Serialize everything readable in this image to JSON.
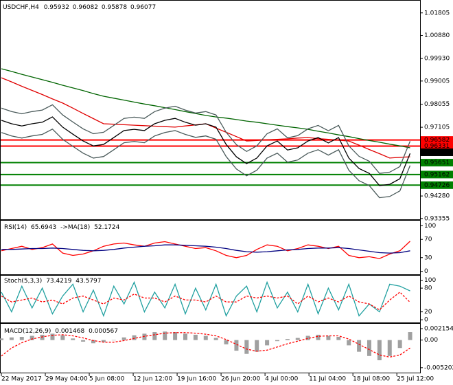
{
  "chart_data": [
    {
      "type": "line",
      "title": "USDCHF,H4",
      "ohlc": [
        0.95932,
        0.96082,
        0.95878,
        0.96077
      ],
      "x": [
        0,
        1,
        2,
        3,
        4,
        5,
        6,
        7,
        8,
        9,
        10,
        11,
        12,
        13,
        14,
        15,
        16,
        17,
        18,
        19,
        20,
        21,
        22,
        23,
        24,
        25,
        26,
        27,
        28,
        29,
        30,
        31,
        32,
        33,
        34,
        35,
        36,
        37,
        38,
        39,
        40
      ],
      "xlim": [
        0,
        40.3
      ],
      "xticks": [
        {
          "value": 0,
          "label": "22 May 2017"
        },
        {
          "value": 4.3,
          "label": "29 May 04:00"
        },
        {
          "value": 8.6,
          "label": "5 Jun 08:00"
        },
        {
          "value": 12.9,
          "label": "12 Jun 12:00"
        },
        {
          "value": 17.2,
          "label": "19 Jun 16:00"
        },
        {
          "value": 21.5,
          "label": "26 Jun 20:00"
        },
        {
          "value": 25.8,
          "label": "4 Jul 00:00"
        },
        {
          "value": 30.1,
          "label": "11 Jul 04:00"
        },
        {
          "value": 34.4,
          "label": "18 Jul 08:00"
        },
        {
          "value": 38.7,
          "label": "25 Jul 12:00"
        }
      ],
      "ylim": [
        0.9335,
        1.0225
      ],
      "yticks": [
        1.01805,
        {
          "value": 1.0088,
          "label": "1.00880"
        },
        {
          "value": 0.9993,
          "label": "0.99930"
        },
        0.99005,
        0.98055,
        0.97105,
        {
          "value": 0.9428,
          "label": "0.94280"
        },
        0.93355
      ],
      "levels": [
        {
          "value": 0.96582,
          "color": "#ff0000"
        },
        {
          "value": 0.96331,
          "color": "#ff0000"
        },
        {
          "value": 0.96077,
          "color": "#000000"
        },
        {
          "value": 0.95651,
          "color": "#008000"
        },
        {
          "value": 0.95162,
          "color": "#008000"
        },
        {
          "value": 0.94726,
          "color": "#008000"
        }
      ],
      "series": [
        {
          "color": "#006400",
          "values": [
            0.9951,
            0.994,
            0.9928,
            0.9917,
            0.9906,
            0.9895,
            0.9883,
            0.9872,
            0.9861,
            0.9849,
            0.9838,
            0.983,
            0.9822,
            0.9814,
            0.9806,
            0.9799,
            0.9791,
            0.9783,
            0.9775,
            0.9767,
            0.9759,
            0.9753,
            0.9748,
            0.9742,
            0.9736,
            0.9731,
            0.9725,
            0.9719,
            0.9713,
            0.9708,
            0.9702,
            0.9694,
            0.9687,
            0.9679,
            0.9672,
            0.9664,
            0.9656,
            0.9649,
            0.9641,
            0.9634,
            0.9626
          ]
        },
        {
          "color": "#e00000",
          "values": [
            0.9914,
            0.9897,
            0.9879,
            0.9862,
            0.9845,
            0.9827,
            0.981,
            0.9789,
            0.9767,
            0.9746,
            0.9725,
            0.9723,
            0.9721,
            0.9719,
            0.9717,
            0.9715,
            0.9713,
            0.9711,
            0.9716,
            0.972,
            0.9725,
            0.9707,
            0.969,
            0.9672,
            0.9654,
            0.9656,
            0.9659,
            0.9661,
            0.9663,
            0.9666,
            0.9668,
            0.9664,
            0.9661,
            0.9657,
            0.9654,
            0.9637,
            0.9619,
            0.9602,
            0.9584,
            0.9587,
            0.9589
          ]
        },
        {
          "color": "#4a5a5a",
          "values": [
            0.9789,
            0.9775,
            0.9766,
            0.9775,
            0.9781,
            0.9803,
            0.9761,
            0.9732,
            0.9704,
            0.9684,
            0.969,
            0.9718,
            0.9747,
            0.9752,
            0.9747,
            0.9775,
            0.9789,
            0.9797,
            0.9781,
            0.9769,
            0.9775,
            0.9761,
            0.969,
            0.9639,
            0.9611,
            0.9634,
            0.9684,
            0.9704,
            0.9667,
            0.9676,
            0.9704,
            0.9718,
            0.9696,
            0.9718,
            0.9634,
            0.9591,
            0.9571,
            0.9521,
            0.9526,
            0.9549,
            0.9653
          ]
        },
        {
          "color": "#4a5a5a",
          "values": [
            0.9689,
            0.9675,
            0.9666,
            0.9675,
            0.9681,
            0.9703,
            0.9661,
            0.9632,
            0.9604,
            0.9584,
            0.959,
            0.9618,
            0.9647,
            0.9652,
            0.9647,
            0.9675,
            0.9689,
            0.9697,
            0.9681,
            0.9669,
            0.9675,
            0.9661,
            0.959,
            0.9539,
            0.9511,
            0.9534,
            0.9584,
            0.9604,
            0.9567,
            0.9576,
            0.9604,
            0.9618,
            0.9596,
            0.9618,
            0.9534,
            0.9491,
            0.9471,
            0.9421,
            0.9426,
            0.9449,
            0.9553
          ]
        },
        {
          "color": "#000000",
          "values": [
            0.9739,
            0.9725,
            0.9716,
            0.9725,
            0.9731,
            0.9753,
            0.9711,
            0.9682,
            0.9654,
            0.9634,
            0.964,
            0.9668,
            0.9697,
            0.9702,
            0.9697,
            0.9725,
            0.9739,
            0.9747,
            0.9731,
            0.9719,
            0.9725,
            0.9711,
            0.964,
            0.9589,
            0.9561,
            0.9584,
            0.9634,
            0.9654,
            0.9617,
            0.9626,
            0.9654,
            0.9668,
            0.9646,
            0.9668,
            0.9584,
            0.9541,
            0.9521,
            0.9471,
            0.9476,
            0.9499,
            0.9603
          ]
        }
      ]
    },
    {
      "type": "line",
      "title": "RSI(14)",
      "value": 65.6943,
      "subtitle": "->MA(18)",
      "value2": 52.1724,
      "ylim": [
        -5,
        108
      ],
      "yticks": [
        100,
        70,
        30,
        0
      ],
      "series": [
        {
          "color": "#ff0000",
          "values": [
            45,
            50,
            55,
            48,
            52,
            60,
            40,
            35,
            38,
            45,
            55,
            60,
            62,
            58,
            55,
            62,
            65,
            60,
            55,
            50,
            52,
            45,
            35,
            30,
            35,
            48,
            58,
            55,
            45,
            50,
            58,
            55,
            50,
            55,
            35,
            30,
            32,
            28,
            38,
            45,
            66
          ]
        },
        {
          "color": "#000080",
          "values": [
            48,
            48,
            49,
            50,
            50,
            51,
            50,
            48,
            46,
            45,
            46,
            48,
            51,
            53,
            55,
            56,
            58,
            58,
            57,
            56,
            55,
            53,
            50,
            46,
            43,
            42,
            43,
            45,
            47,
            48,
            50,
            51,
            51,
            52,
            50,
            47,
            44,
            41,
            40,
            41,
            45
          ]
        }
      ]
    },
    {
      "type": "line",
      "title": "Stoch(5,3,3)",
      "value": 73.4219,
      "value2": 43.5797,
      "ylim": [
        -5,
        108
      ],
      "yticks": [
        100,
        80,
        20,
        0
      ],
      "series": [
        {
          "color": "#20a0a0",
          "values": [
            70,
            20,
            85,
            30,
            80,
            15,
            60,
            90,
            20,
            75,
            10,
            85,
            40,
            95,
            20,
            70,
            30,
            90,
            15,
            80,
            25,
            90,
            10,
            60,
            85,
            20,
            95,
            30,
            70,
            20,
            90,
            15,
            80,
            25,
            90,
            10,
            40,
            20,
            90,
            85,
            73
          ]
        },
        {
          "color": "#ff0000",
          "dash": true,
          "values": [
            60,
            45,
            50,
            55,
            45,
            50,
            40,
            55,
            60,
            50,
            40,
            55,
            50,
            65,
            55,
            55,
            45,
            60,
            50,
            50,
            45,
            60,
            45,
            45,
            60,
            55,
            60,
            55,
            60,
            40,
            60,
            45,
            55,
            45,
            60,
            45,
            40,
            25,
            50,
            70,
            44
          ]
        }
      ]
    },
    {
      "type": "line",
      "title": "MACD(12,26,9)",
      "value": 0.001468,
      "value2": 0.000567,
      "ylim": [
        -0.006,
        0.0028
      ],
      "yticks": [
        0.002154,
        {
          "value": 0,
          "label": "0.00"
        },
        -0.005202
      ],
      "series": [
        {
          "color": "#a0a0a0",
          "style": "bar",
          "values": [
            0.0003,
            0.0005,
            0.0006,
            0.0008,
            0.001,
            0.0012,
            0.0009,
            0.0003,
            -0.0003,
            -0.0006,
            -0.0004,
            0.0,
            0.0005,
            0.0009,
            0.0012,
            0.0015,
            0.0016,
            0.0015,
            0.0012,
            0.001,
            0.0008,
            0.0004,
            -0.0008,
            -0.002,
            -0.0026,
            -0.0022,
            -0.001,
            -0.0002,
            0.0002,
            0.0004,
            0.0008,
            0.001,
            0.0008,
            0.0006,
            -0.001,
            -0.0022,
            -0.003,
            -0.0038,
            -0.003,
            -0.0015,
            0.0015
          ]
        },
        {
          "color": "#ff0000",
          "dash": true,
          "values": [
            -0.003,
            -0.0015,
            -0.0005,
            0.0002,
            0.0006,
            0.0009,
            0.001,
            0.0008,
            0.0004,
            -0.0001,
            -0.0004,
            -0.0004,
            -0.0001,
            0.0003,
            0.0007,
            0.001,
            0.0013,
            0.0014,
            0.0014,
            0.0013,
            0.0011,
            0.0008,
            0.0001,
            -0.0008,
            -0.0017,
            -0.0021,
            -0.0019,
            -0.0013,
            -0.0007,
            -0.0002,
            0.0003,
            0.0007,
            0.0008,
            0.0008,
            0.0002,
            -0.0008,
            -0.0018,
            -0.0028,
            -0.0032,
            -0.0028,
            -0.0015
          ]
        }
      ]
    }
  ]
}
